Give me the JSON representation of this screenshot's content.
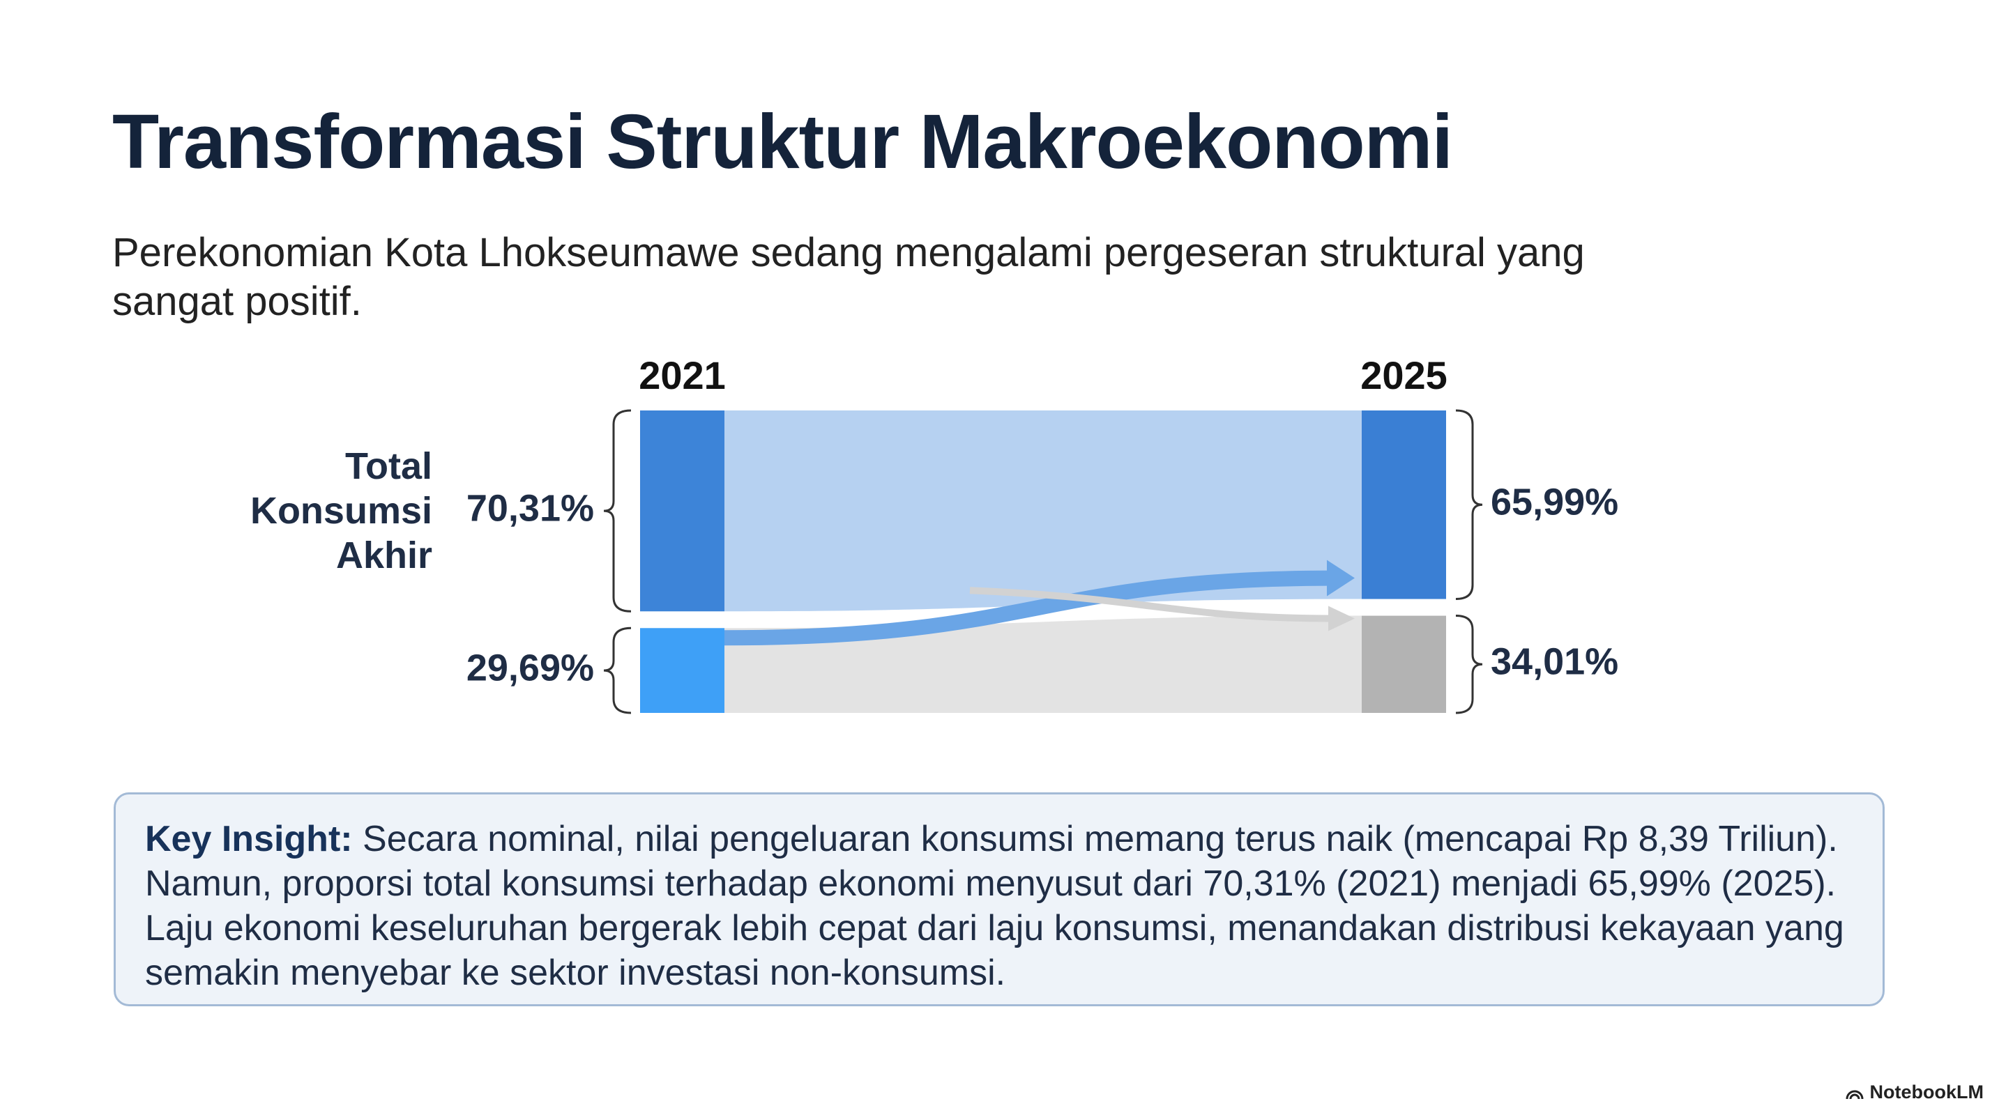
{
  "chart_data": {
    "type": "flow",
    "title": "Transformasi Struktur Makroekonomi",
    "subtitle": "Perekonomian Kota Lhokseumawe sedang mengalami pergeseran struktural yang sangat positif.",
    "categories": [
      "2021",
      "2025"
    ],
    "series": [
      {
        "name": "Total Konsumsi Akhir",
        "colors": [
          "#3d84d8",
          "#3a7fd4"
        ],
        "values": [
          70.31,
          65.99
        ],
        "value_labels": [
          "70,31%",
          "65,99%"
        ]
      },
      {
        "colors": [
          "#3ea0f7",
          "#b3b3b3"
        ],
        "values": [
          29.69,
          34.01
        ],
        "value_labels": [
          "29,69%",
          "34,01%"
        ]
      }
    ]
  },
  "insight": {
    "label": "Key Insight:",
    "text": "Secara nominal, nilai pengeluaran konsumsi memang terus naik (mencapai Rp 8,39 Triliun). Namun, proporsi total konsumsi terhadap ekonomi menyusut dari 70,31% (2021) menjadi 65,99% (2025). Laju ekonomi keseluruhan bergerak lebih cepat dari laju konsumsi, menandakan distribusi kekayaan yang semakin menyebar ke sektor investasi non-konsumsi."
  },
  "brand": "NotebookLM"
}
